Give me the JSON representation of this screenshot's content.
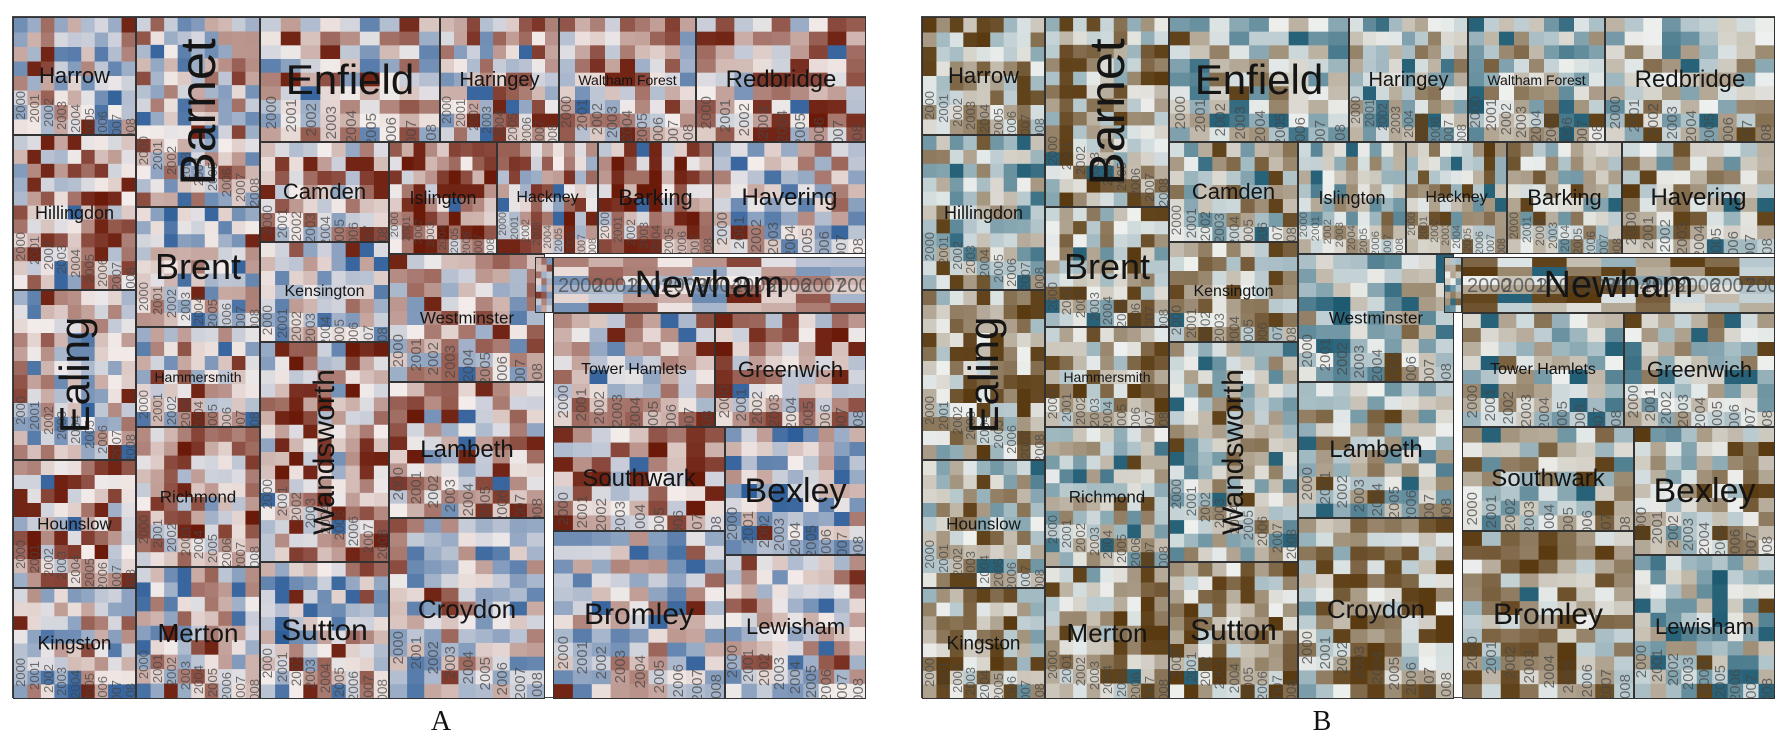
{
  "chart_data": [
    {
      "type": "heatmap",
      "panel_label": "A",
      "palette": [
        "#2f5f9a",
        "#f3ecea",
        "#6b1a0a"
      ],
      "boroughs": [
        "Harrow",
        "Barnet",
        "Enfield",
        "Haringey",
        "Waltham Forest",
        "Redbridge",
        "Hillingdon",
        "Camden",
        "Islington",
        "Hackney",
        "Barking",
        "Havering",
        "Brent",
        "Kensington",
        "Newham",
        "Ealing",
        "Hammersmith",
        "Westminster",
        "Tower Hamlets",
        "Greenwich",
        "Wandsworth",
        "Lambeth",
        "Richmond",
        "Hounslow",
        "Southwark",
        "Bexley",
        "Kingston",
        "Merton",
        "Sutton",
        "Croydon",
        "Bromley",
        "Lewisham"
      ],
      "years": [
        "2000",
        "2001",
        "2002",
        "2003",
        "2004",
        "2005",
        "2006",
        "2007",
        "2008"
      ]
    },
    {
      "type": "heatmap",
      "panel_label": "B",
      "palette": [
        "#1e5b73",
        "#eef0ee",
        "#5a3a10"
      ],
      "boroughs": [
        "Harrow",
        "Barnet",
        "Enfield",
        "Haringey",
        "Waltham Forest",
        "Redbridge",
        "Hillingdon",
        "Camden",
        "Islington",
        "Hackney",
        "Barking",
        "Havering",
        "Brent",
        "Kensington",
        "Newham",
        "Ealing",
        "Hammersmith",
        "Westminster",
        "Tower Hamlets",
        "Greenwich",
        "Wandsworth",
        "Lambeth",
        "Richmond",
        "Hounslow",
        "Southwark",
        "Bexley",
        "Kingston",
        "Merton",
        "Sutton",
        "Croydon",
        "Bromley",
        "Lewisham"
      ],
      "years": [
        "2000",
        "2001",
        "2002",
        "2003",
        "2004",
        "2005",
        "2006",
        "2007",
        "2008"
      ]
    }
  ],
  "labels": {
    "panel_a": "A",
    "panel_b": "B"
  }
}
